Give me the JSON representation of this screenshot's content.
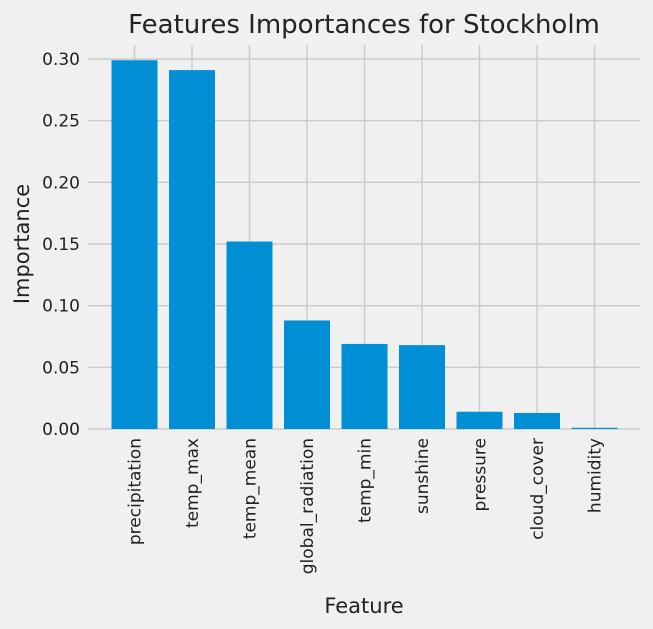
{
  "chart_data": {
    "type": "bar",
    "title": "Features Importances for Stockholm",
    "xlabel": "Feature",
    "ylabel": "Importance",
    "categories": [
      "precipitation",
      "temp_max",
      "temp_mean",
      "global_radiation",
      "temp_min",
      "sunshine",
      "pressure",
      "cloud_cover",
      "humidity"
    ],
    "values": [
      0.299,
      0.291,
      0.152,
      0.088,
      0.069,
      0.068,
      0.014,
      0.013,
      0.001
    ],
    "ylim": [
      0,
      0.3
    ],
    "yticks": [
      "0.00",
      "0.05",
      "0.10",
      "0.15",
      "0.20",
      "0.25",
      "0.30"
    ],
    "grid": true,
    "bar_color": "#008fd5",
    "background": "#f0f0f0",
    "grid_color": "#cbcbcb"
  }
}
